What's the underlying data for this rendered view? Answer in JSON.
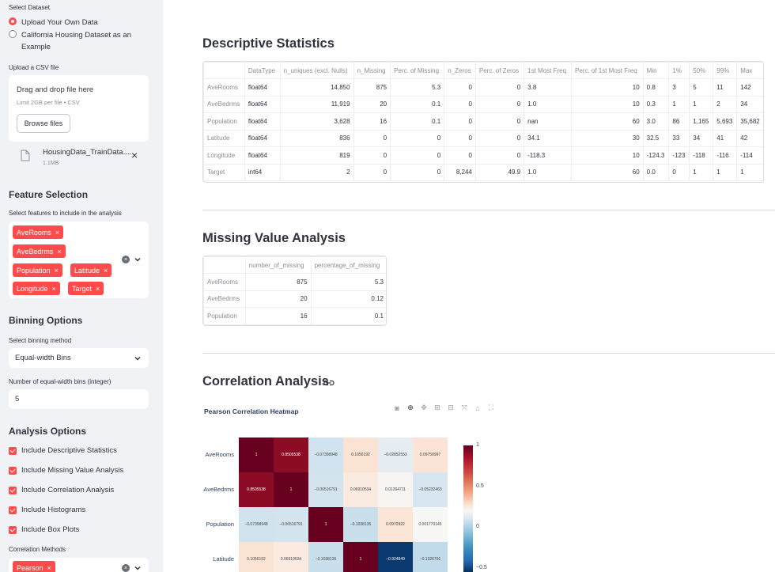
{
  "sidebar": {
    "dataset_label": "Select Dataset",
    "dataset_options": [
      "Upload Your Own Data",
      "California Housing Dataset as an Example"
    ],
    "upload_label": "Upload a CSV file",
    "dropzone_text": "Drag and drop file here",
    "dropzone_limit": "Limit 2GB per file • CSV",
    "browse_button": "Browse files",
    "file_name": "HousingData_TrainData....",
    "file_size": "1.1MB",
    "feature_header": "Feature Selection",
    "feature_label": "Select features to include in the analysis",
    "features": [
      "AveRooms",
      "AveBedrms",
      "Population",
      "Latitude",
      "Longitude",
      "Target"
    ],
    "binning_header": "Binning Options",
    "binning_label": "Select binning method",
    "binning_value": "Equal-width Bins",
    "bins_label": "Number of equal-width bins (integer)",
    "bins_value": "5",
    "analysis_header": "Analysis Options",
    "analysis_options": [
      "Include Descriptive Statistics",
      "Include Missing Value Analysis",
      "Include Correlation Analysis",
      "Include Histograms",
      "Include Box Plots"
    ],
    "correlation_label": "Correlation Methods",
    "correlation_tags": [
      "Pearson"
    ]
  },
  "main": {
    "descriptive_title": "Descriptive Statistics",
    "descriptive_table": {
      "columns": [
        "",
        "DataType",
        "n_uniques (excl. Nulls)",
        "n_Missing",
        "Perc. of Missing",
        "n_Zeros",
        "Perc. of Zeros",
        "1st Most Freq",
        "Perc. of 1st Most Freq",
        "Min",
        "1%",
        "50%",
        "99%",
        "Max"
      ],
      "rows": [
        [
          "AveRooms",
          "float64",
          "14,850",
          "875",
          "5.3",
          "0",
          "0",
          "3.8",
          "10",
          "0.8",
          "3",
          "5",
          "11",
          "142"
        ],
        [
          "AveBedrms",
          "float64",
          "11,919",
          "20",
          "0.1",
          "0",
          "0",
          "1.0",
          "10",
          "0.3",
          "1",
          "1",
          "2",
          "34"
        ],
        [
          "Population",
          "float64",
          "3,628",
          "16",
          "0.1",
          "0",
          "0",
          "nan",
          "60",
          "3.0",
          "86",
          "1,165",
          "5,693",
          "35,682"
        ],
        [
          "Latitude",
          "float64",
          "836",
          "0",
          "0",
          "0",
          "0",
          "34.1",
          "30",
          "32.5",
          "33",
          "34",
          "41",
          "42"
        ],
        [
          "Longitude",
          "float64",
          "819",
          "0",
          "0",
          "0",
          "0",
          "-118.3",
          "10",
          "-124.3",
          "-123",
          "-118",
          "-116",
          "-114"
        ],
        [
          "Target",
          "int64",
          "2",
          "0",
          "0",
          "8,244",
          "49.9",
          "1.0",
          "60",
          "0.0",
          "0",
          "1",
          "1",
          "1"
        ]
      ]
    },
    "missing_title": "Missing Value Analysis",
    "missing_table": {
      "columns": [
        "",
        "number_of_missing",
        "percentage_of_missing"
      ],
      "rows": [
        [
          "AveRooms",
          "875",
          "5.3"
        ],
        [
          "AveBedrms",
          "20",
          "0.12"
        ],
        [
          "Population",
          "16",
          "0.1"
        ]
      ]
    },
    "correlation_title": "Correlation Analysis",
    "heatmap_title": "Pearson Correlation Heatmap",
    "toolbar_icons": [
      "camera-icon",
      "zoom-icon",
      "pan-icon",
      "zoom-in-icon",
      "zoom-out-icon",
      "autoscale-icon",
      "home-icon",
      "fullscreen-icon"
    ]
  },
  "chart_data": {
    "type": "heatmap",
    "title": "Pearson Correlation Heatmap",
    "y_categories": [
      "AveRooms",
      "AveBedrms",
      "Population",
      "Latitude"
    ],
    "values": [
      [
        "1",
        "0.8505538",
        "−0.07398948",
        "0.1056192",
        "−0.02852553",
        "0.09750997"
      ],
      [
        "0.8505538",
        "1",
        "−0.06516791",
        "0.06910534",
        "0.01394711",
        "−0.05232463"
      ],
      [
        "−0.07398948",
        "−0.06516791",
        "1",
        "−0.1038135",
        "0.0970922",
        "0.001770145"
      ],
      [
        "0.1056192",
        "0.06910534",
        "−0.1038135",
        "1",
        "−0.924849",
        "−0.1326791"
      ]
    ],
    "numeric_values": [
      [
        1,
        0.8505538,
        -0.07398948,
        0.1056192,
        -0.02852553,
        0.09750997
      ],
      [
        0.8505538,
        1,
        -0.06516791,
        0.06910534,
        0.01394711,
        -0.05232463
      ],
      [
        -0.07398948,
        -0.06516791,
        1,
        -0.1038135,
        0.0970922,
        0.001770145
      ],
      [
        0.1056192,
        0.06910534,
        -0.1038135,
        1,
        -0.924849,
        -0.1326791
      ]
    ],
    "colorbar_ticks": [
      "1",
      "0.5",
      "0",
      "−0.5"
    ],
    "colorscale": "RdBu"
  },
  "colors": {
    "accent": "#ff4b4b",
    "sidebar_bg": "#f0f2f6",
    "text": "#31333f"
  }
}
